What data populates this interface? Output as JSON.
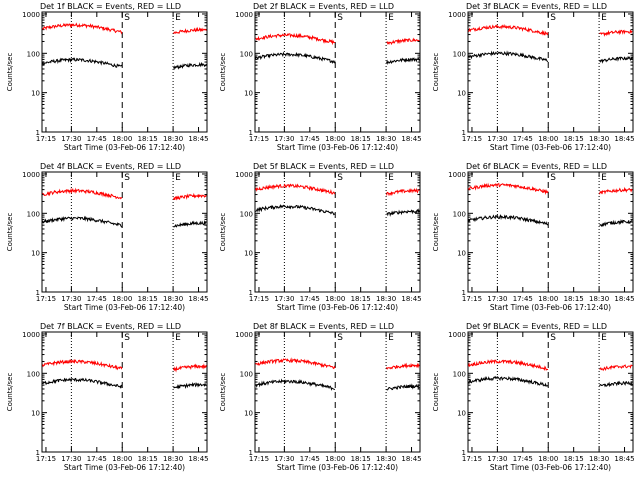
{
  "chart_data": [
    {
      "type": "line",
      "title": "Det 1f BLACK = Events, RED = LLD",
      "ylabel": "Counts/sec",
      "xlabel": "Start Time (03-Feb-06 17:12:40)",
      "y_scale": "log",
      "ylim": [
        1,
        1000
      ],
      "yticks": [
        "1",
        "10",
        "100",
        "1000"
      ],
      "xlim": [
        "17:12:40",
        "18:50:00"
      ],
      "xticks": [
        "17:15",
        "17:30",
        "17:45",
        "18:00",
        "18:15",
        "18:30",
        "18:45"
      ],
      "markers": {
        "S": "18:00",
        "E": "18:30"
      },
      "dotted_lines": [
        "17:30",
        "18:30"
      ],
      "dashed_lines": [
        "18:00"
      ],
      "series": [
        {
          "color": "#ff0000",
          "level": 420
        },
        {
          "color": "#000000",
          "level": 55
        }
      ]
    },
    {
      "type": "line",
      "title": "Det 2f BLACK = Events, RED = LLD",
      "ylabel": "Counts/sec",
      "xlabel": "Start Time (03-Feb-06 17:12:40)",
      "y_scale": "log",
      "ylim": [
        1,
        1000
      ],
      "yticks": [
        "1",
        "10",
        "100",
        "1000"
      ],
      "xlim": [
        "17:12:40",
        "18:50:00"
      ],
      "xticks": [
        "17:15",
        "17:30",
        "17:45",
        "18:00",
        "18:15",
        "18:30",
        "18:45"
      ],
      "markers": {
        "S": "18:00",
        "E": "18:30"
      },
      "dotted_lines": [
        "17:30",
        "18:30"
      ],
      "dashed_lines": [
        "18:00"
      ],
      "series": [
        {
          "color": "#ff0000",
          "level": 230
        },
        {
          "color": "#000000",
          "level": 75
        }
      ]
    },
    {
      "type": "line",
      "title": "Det 3f BLACK = Events, RED = LLD",
      "ylabel": "Counts/sec",
      "xlabel": "Start Time (03-Feb-06 17:12:40)",
      "y_scale": "log",
      "ylim": [
        1,
        1000
      ],
      "yticks": [
        "1",
        "10",
        "100",
        "1000"
      ],
      "xlim": [
        "17:12:40",
        "18:50:00"
      ],
      "xticks": [
        "17:15",
        "17:30",
        "17:45",
        "18:00",
        "18:15",
        "18:30",
        "18:45"
      ],
      "markers": {
        "S": "18:00",
        "E": "18:30"
      },
      "dotted_lines": [
        "17:30",
        "18:30"
      ],
      "dashed_lines": [
        "18:00"
      ],
      "series": [
        {
          "color": "#ff0000",
          "level": 380
        },
        {
          "color": "#000000",
          "level": 80
        }
      ]
    },
    {
      "type": "line",
      "title": "Det 4f BLACK = Events, RED = LLD",
      "ylabel": "Counts/sec",
      "xlabel": "Start Time (03-Feb-06 17:12:40)",
      "y_scale": "log",
      "ylim": [
        1,
        1000
      ],
      "yticks": [
        "1",
        "10",
        "100",
        "1000"
      ],
      "xlim": [
        "17:12:40",
        "18:50:00"
      ],
      "xticks": [
        "17:15",
        "17:30",
        "17:45",
        "18:00",
        "18:15",
        "18:30",
        "18:45"
      ],
      "markers": {
        "S": "18:00",
        "E": "18:30"
      },
      "dotted_lines": [
        "17:30",
        "18:30"
      ],
      "dashed_lines": [
        "18:00"
      ],
      "series": [
        {
          "color": "#ff0000",
          "level": 300
        },
        {
          "color": "#000000",
          "level": 60
        }
      ]
    },
    {
      "type": "line",
      "title": "Det 5f BLACK = Events, RED = LLD",
      "ylabel": "Counts/sec",
      "xlabel": "Start Time (03-Feb-06 17:12:40)",
      "y_scale": "log",
      "ylim": [
        1,
        1000
      ],
      "yticks": [
        "1",
        "10",
        "100",
        "1000"
      ],
      "xlim": [
        "17:12:40",
        "18:50:00"
      ],
      "xticks": [
        "17:15",
        "17:30",
        "17:45",
        "18:00",
        "18:15",
        "18:30",
        "18:45"
      ],
      "markers": {
        "S": "18:00",
        "E": "18:30"
      },
      "dotted_lines": [
        "17:30",
        "18:30"
      ],
      "dashed_lines": [
        "18:00"
      ],
      "series": [
        {
          "color": "#ff0000",
          "level": 400
        },
        {
          "color": "#000000",
          "level": 120
        }
      ]
    },
    {
      "type": "line",
      "title": "Det 6f BLACK = Events, RED = LLD",
      "ylabel": "Counts/sec",
      "xlabel": "Start Time (03-Feb-06 17:12:40)",
      "y_scale": "log",
      "ylim": [
        1,
        1000
      ],
      "yticks": [
        "1",
        "10",
        "100",
        "1000"
      ],
      "xlim": [
        "17:12:40",
        "18:50:00"
      ],
      "xticks": [
        "17:15",
        "17:30",
        "17:45",
        "18:00",
        "18:15",
        "18:30",
        "18:45"
      ],
      "markers": {
        "S": "18:00",
        "E": "18:30"
      },
      "dotted_lines": [
        "17:30",
        "18:30"
      ],
      "dashed_lines": [
        "18:00"
      ],
      "series": [
        {
          "color": "#ff0000",
          "level": 420
        },
        {
          "color": "#000000",
          "level": 65
        }
      ]
    },
    {
      "type": "line",
      "title": "Det 7f BLACK = Events, RED = LLD",
      "ylabel": "Counts/sec",
      "xlabel": "Start Time (03-Feb-06 17:12:40)",
      "y_scale": "log",
      "ylim": [
        1,
        1000
      ],
      "yticks": [
        "1",
        "10",
        "100",
        "1000"
      ],
      "xlim": [
        "17:12:40",
        "18:50:00"
      ],
      "xticks": [
        "17:15",
        "17:30",
        "17:45",
        "18:00",
        "18:15",
        "18:30",
        "18:45"
      ],
      "markers": {
        "S": "18:00",
        "E": "18:30"
      },
      "dotted_lines": [
        "17:30",
        "18:30"
      ],
      "dashed_lines": [
        "18:00"
      ],
      "series": [
        {
          "color": "#ff0000",
          "level": 160
        },
        {
          "color": "#000000",
          "level": 55
        }
      ]
    },
    {
      "type": "line",
      "title": "Det 8f BLACK = Events, RED = LLD",
      "ylabel": "Counts/sec",
      "xlabel": "Start Time (03-Feb-06 17:12:40)",
      "y_scale": "log",
      "ylim": [
        1,
        1000
      ],
      "yticks": [
        "1",
        "10",
        "100",
        "1000"
      ],
      "xlim": [
        "17:12:40",
        "18:50:00"
      ],
      "xticks": [
        "17:15",
        "17:30",
        "17:45",
        "18:00",
        "18:15",
        "18:30",
        "18:45"
      ],
      "markers": {
        "S": "18:00",
        "E": "18:30"
      },
      "dotted_lines": [
        "17:30",
        "18:30"
      ],
      "dashed_lines": [
        "18:00"
      ],
      "series": [
        {
          "color": "#ff0000",
          "level": 170
        },
        {
          "color": "#000000",
          "level": 50
        }
      ]
    },
    {
      "type": "line",
      "title": "Det 9f BLACK = Events, RED = LLD",
      "ylabel": "Counts/sec",
      "xlabel": "Start Time (03-Feb-06 17:12:40)",
      "y_scale": "log",
      "ylim": [
        1,
        1000
      ],
      "yticks": [
        "1",
        "10",
        "100",
        "1000"
      ],
      "xlim": [
        "17:12:40",
        "18:50:00"
      ],
      "xticks": [
        "17:15",
        "17:30",
        "17:45",
        "18:00",
        "18:15",
        "18:30",
        "18:45"
      ],
      "markers": {
        "S": "18:00",
        "E": "18:30"
      },
      "dotted_lines": [
        "17:30",
        "18:30"
      ],
      "dashed_lines": [
        "18:00"
      ],
      "series": [
        {
          "color": "#ff0000",
          "level": 160
        },
        {
          "color": "#000000",
          "level": 60
        }
      ]
    }
  ]
}
